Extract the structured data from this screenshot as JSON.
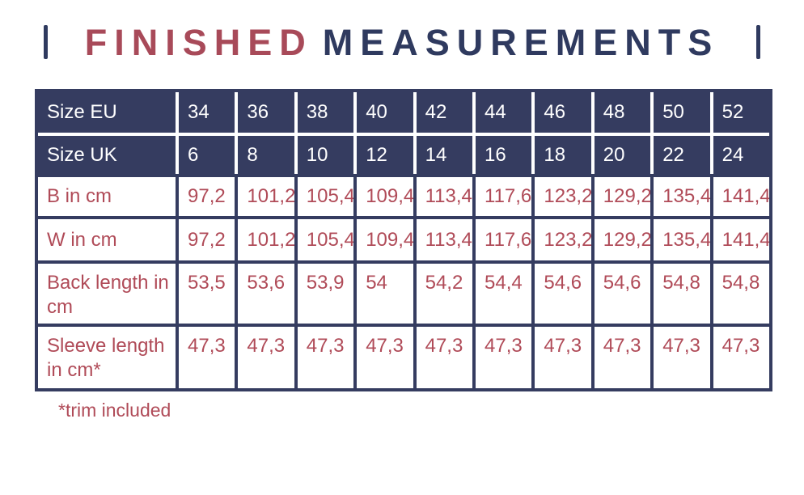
{
  "title": {
    "word_red": "FINISHED",
    "word_navy": "MEASUREMENTS",
    "full": "FINISHED MEASUREMENTS"
  },
  "colors": {
    "navy": "#353C60",
    "title_navy": "#2F3A5F",
    "red": "#B04B58",
    "title_red": "#A84A59",
    "header_text": "#FFFFFF",
    "background": "#FFFFFF"
  },
  "footnote": "*trim included",
  "chart_data": {
    "type": "table",
    "title": "FINISHED MEASUREMENTS",
    "rows": [
      {
        "label": "Size EU",
        "header": true,
        "values": [
          "34",
          "36",
          "38",
          "40",
          "42",
          "44",
          "46",
          "48",
          "50",
          "52"
        ]
      },
      {
        "label": "Size UK",
        "header": true,
        "values": [
          "6",
          "8",
          "10",
          "12",
          "14",
          "16",
          "18",
          "20",
          "22",
          "24"
        ]
      },
      {
        "label": "B in cm",
        "header": false,
        "values": [
          "97,2",
          "101,2",
          "105,4",
          "109,4",
          "113,4",
          "117,6",
          "123,2",
          "129,2",
          "135,4",
          "141,4"
        ]
      },
      {
        "label": "W in cm",
        "header": false,
        "values": [
          "97,2",
          "101,2",
          "105,4",
          "109,4",
          "113,4",
          "117,6",
          "123,2",
          "129,2",
          "135,4",
          "141,4"
        ]
      },
      {
        "label": "Back length in cm",
        "header": false,
        "values": [
          "53,5",
          "53,6",
          "53,9",
          "54",
          "54,2",
          "54,4",
          "54,6",
          "54,6",
          "54,8",
          "54,8"
        ]
      },
      {
        "label": "Sleeve length in cm*",
        "header": false,
        "values": [
          "47,3",
          "47,3",
          "47,3",
          "47,3",
          "47,3",
          "47,3",
          "47,3",
          "47,3",
          "47,3",
          "47,3"
        ]
      }
    ],
    "footnote": "*trim included",
    "layout": {
      "header_rows": 2,
      "label_column": true,
      "legend_position": "none",
      "grid": "on"
    }
  }
}
